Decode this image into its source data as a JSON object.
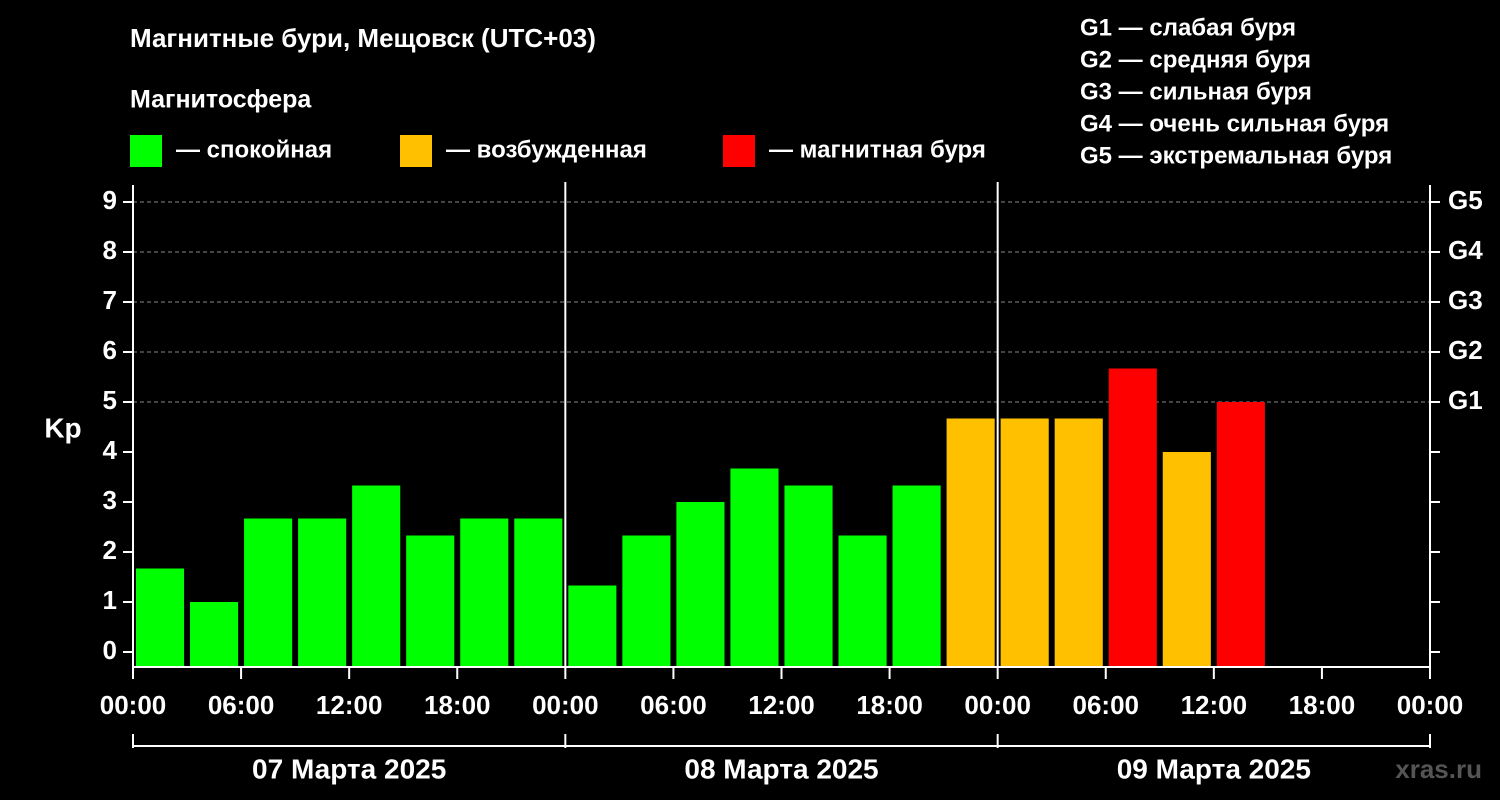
{
  "chart_data": {
    "type": "bar",
    "title": "Магнитные бури, Мещовск (UTC+03)",
    "subtitle": "Магнитосфера",
    "y_label": "Kp",
    "watermark": "xras.ru",
    "legend": [
      {
        "name": "— спокойная",
        "color": "#00ff00"
      },
      {
        "name": "— возбужденная",
        "color": "#ffc000"
      },
      {
        "name": "— магнитная буря",
        "color": "#ff0000"
      }
    ],
    "storm_levels": [
      "G1 — слабая буря",
      "G2 — средняя буря",
      "G3 — сильная буря",
      "G4 — очень сильная буря",
      "G5 — экстремальная буря"
    ],
    "x": [
      1.5,
      4.5,
      7.5,
      10.5,
      13.5,
      16.5,
      19.5,
      22.5,
      25.5,
      28.5,
      31.5,
      34.5,
      37.5,
      40.5,
      43.5,
      46.5,
      49.5,
      52.5,
      55.5,
      58.5,
      61.5
    ],
    "values": [
      1.67,
      1,
      2.67,
      2.67,
      3.33,
      2.33,
      2.67,
      2.67,
      1.33,
      2.33,
      3,
      3.67,
      3.33,
      2.33,
      3.33,
      4.67,
      4.67,
      4.67,
      5.67,
      4,
      5
    ],
    "colors": [
      "#00ff00",
      "#00ff00",
      "#00ff00",
      "#00ff00",
      "#00ff00",
      "#00ff00",
      "#00ff00",
      "#00ff00",
      "#00ff00",
      "#00ff00",
      "#00ff00",
      "#00ff00",
      "#00ff00",
      "#00ff00",
      "#00ff00",
      "#ffc000",
      "#ffc000",
      "#ffc000",
      "#ff0000",
      "#ffc000",
      "#ff0000"
    ],
    "xlim": [
      0,
      72
    ],
    "xticks": [
      {
        "value": 0,
        "label": "00:00"
      },
      {
        "value": 6,
        "label": "06:00"
      },
      {
        "value": 12,
        "label": "12:00"
      },
      {
        "value": 18,
        "label": "18:00"
      },
      {
        "value": 24,
        "label": "00:00"
      },
      {
        "value": 30,
        "label": "06:00"
      },
      {
        "value": 36,
        "label": "12:00"
      },
      {
        "value": 42,
        "label": "18:00"
      },
      {
        "value": 48,
        "label": "00:00"
      },
      {
        "value": 54,
        "label": "06:00"
      },
      {
        "value": 60,
        "label": "12:00"
      },
      {
        "value": 66,
        "label": "18:00"
      },
      {
        "value": 72,
        "label": "00:00"
      }
    ],
    "days": [
      {
        "label": "07 Марта 2025",
        "start": 0,
        "end": 24
      },
      {
        "label": "08 Марта 2025",
        "start": 24,
        "end": 48
      },
      {
        "label": "09 Марта 2025",
        "start": 48,
        "end": 72
      }
    ],
    "ylim": [
      -0.3,
      9.34
    ],
    "yticks": [
      0,
      1,
      2,
      3,
      4,
      5,
      6,
      7,
      8,
      9
    ],
    "y2lim": [
      -0.3,
      9.34
    ],
    "y2ticks": [
      {
        "value": 5,
        "label": "G1"
      },
      {
        "value": 6,
        "label": "G2"
      },
      {
        "value": 7,
        "label": "G3"
      },
      {
        "value": 8,
        "label": "G4"
      },
      {
        "value": 9,
        "label": "G5"
      }
    ],
    "grid": true
  }
}
